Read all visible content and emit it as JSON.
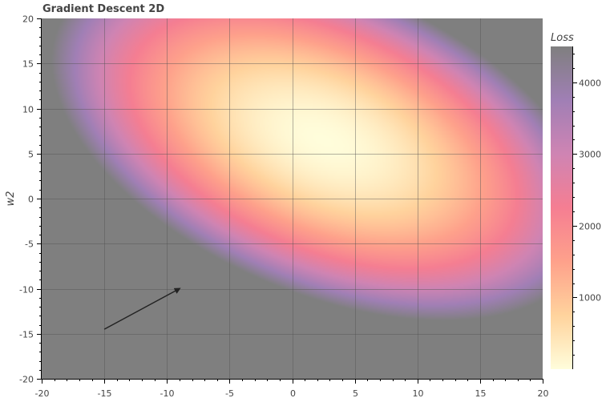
{
  "chart_data": {
    "type": "heatmap",
    "title": "Gradient Descent 2D",
    "xlabel": "",
    "ylabel": "w2",
    "xlim": [
      -20,
      20
    ],
    "ylim": [
      -20,
      20
    ],
    "x_ticks": [
      -20,
      -15,
      -10,
      -5,
      0,
      5,
      10,
      15,
      20
    ],
    "y_ticks": [
      -20,
      -15,
      -10,
      -5,
      0,
      5,
      10,
      15,
      20
    ],
    "grid": true,
    "surface": {
      "minimum": {
        "w1": 2.5,
        "w2": 6.5
      },
      "max_displayed_loss": 4500,
      "background_above_max": "#7f7f7f"
    },
    "arrow": {
      "from": {
        "w1": -15,
        "w2": -14.5
      },
      "to": {
        "w1": -9,
        "w2": -10
      },
      "color": "#222222"
    },
    "colorbar": {
      "title": "Loss",
      "range": [
        0,
        4500
      ],
      "ticks": [
        1000,
        2000,
        3000,
        4000
      ],
      "palette": [
        "#fffddb",
        "#ffd39d",
        "#fea18b",
        "#f57e92",
        "#cf84b3",
        "#a07fb5",
        "#7f7f7f"
      ]
    }
  }
}
